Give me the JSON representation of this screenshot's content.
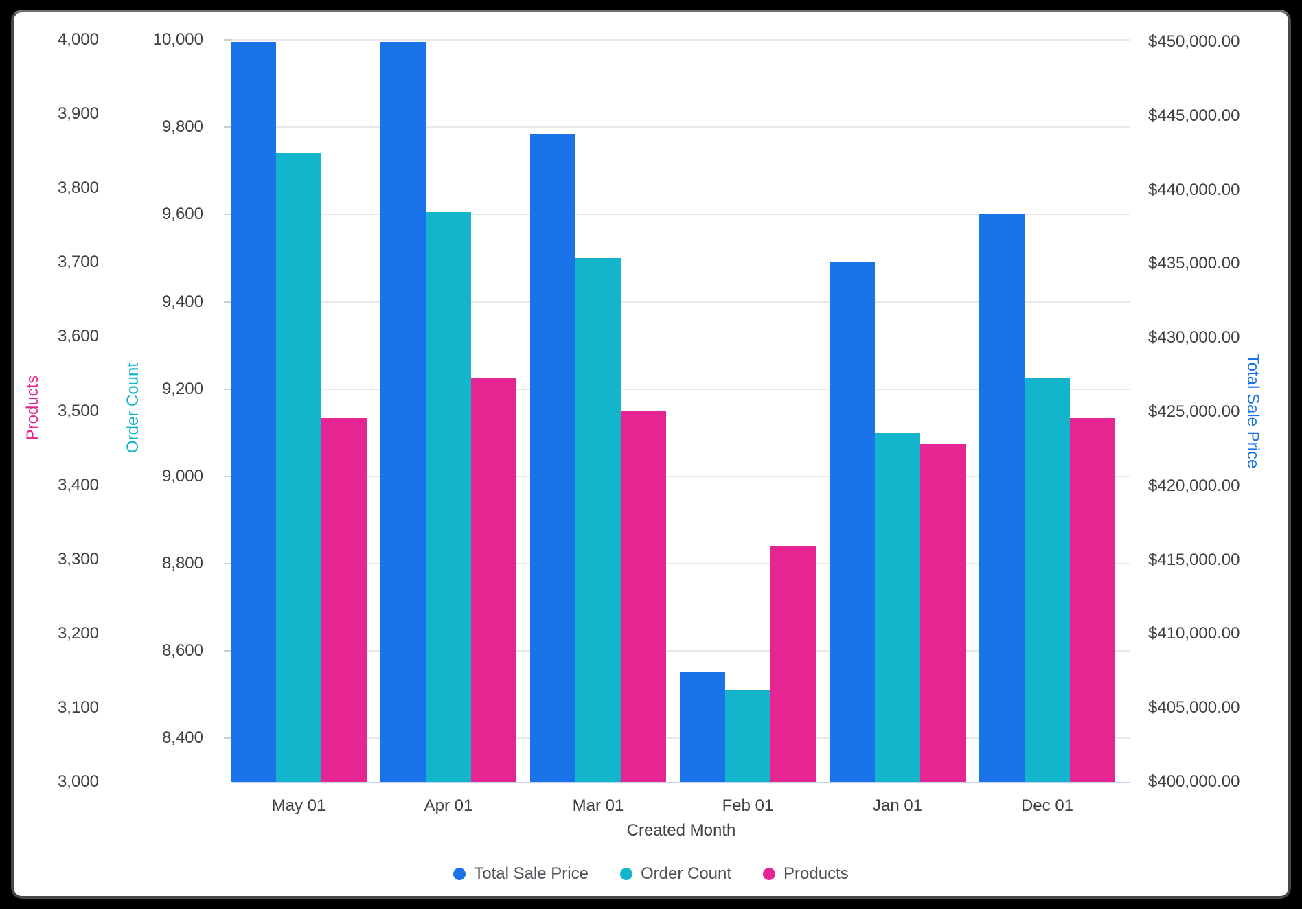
{
  "frame": {
    "background": "#000000",
    "card_background": "#ffffff",
    "card_border": "#46494c"
  },
  "colors": {
    "sale_blue": "#1A73E8",
    "order_cyan": "#12B5CB",
    "products_pink": "#E52592",
    "tick_text": "#3c4043",
    "legend_text": "#4d5156",
    "gridline": "#e8e8e8",
    "axis_baseline": "#c7d1ee"
  },
  "chart_data": {
    "type": "bar",
    "title": "",
    "categories": [
      "May 01",
      "Apr 01",
      "Mar 01",
      "Feb 01",
      "Jan 01",
      "Dec 01"
    ],
    "series": [
      {
        "name": "Total Sale Price",
        "axis": "sale",
        "color": "#1A73E8",
        "values": [
          450000,
          450000,
          443800,
          407400,
          435100,
          438400
        ]
      },
      {
        "name": "Order Count",
        "axis": "order",
        "color": "#12B5CB",
        "values": [
          9740,
          9605,
          9500,
          8510,
          9100,
          9225
        ]
      },
      {
        "name": "Products",
        "axis": "products",
        "color": "#E52592",
        "values": [
          3490,
          3545,
          3500,
          3317,
          3455,
          3490
        ]
      }
    ],
    "xlabel": "Created Month",
    "grid": "horizontal gridlines on Order Count ticks",
    "legend_position": "bottom-center",
    "axes": {
      "products": {
        "title": "Products",
        "title_color": "#E52592",
        "side": "left-outer",
        "min": 3000,
        "max": 4000,
        "ticks": [
          {
            "v": 4000,
            "label": "4,000"
          },
          {
            "v": 3900,
            "label": "3,900"
          },
          {
            "v": 3800,
            "label": "3,800"
          },
          {
            "v": 3700,
            "label": "3,700"
          },
          {
            "v": 3600,
            "label": "3,600"
          },
          {
            "v": 3500,
            "label": "3,500"
          },
          {
            "v": 3400,
            "label": "3,400"
          },
          {
            "v": 3300,
            "label": "3,300"
          },
          {
            "v": 3200,
            "label": "3,200"
          },
          {
            "v": 3100,
            "label": "3,100"
          },
          {
            "v": 3000,
            "label": "3,000"
          }
        ]
      },
      "order": {
        "title": "Order Count",
        "title_color": "#12B5CB",
        "side": "left-inner",
        "min": 8300,
        "max": 10000,
        "ticks": [
          {
            "v": 10000,
            "label": "10,000"
          },
          {
            "v": 9800,
            "label": "9,800"
          },
          {
            "v": 9600,
            "label": "9,600"
          },
          {
            "v": 9400,
            "label": "9,400"
          },
          {
            "v": 9200,
            "label": "9,200"
          },
          {
            "v": 9000,
            "label": "9,000"
          },
          {
            "v": 8800,
            "label": "8,800"
          },
          {
            "v": 8600,
            "label": "8,600"
          },
          {
            "v": 8400,
            "label": "8,400"
          }
        ]
      },
      "sale": {
        "title": "Total Sale Price",
        "title_color": "#1A73E8",
        "side": "right",
        "min": 400000,
        "max": 450000,
        "ticks": [
          {
            "v": 450000,
            "label": "$450,000.00"
          },
          {
            "v": 445000,
            "label": "$445,000.00"
          },
          {
            "v": 440000,
            "label": "$440,000.00"
          },
          {
            "v": 435000,
            "label": "$435,000.00"
          },
          {
            "v": 430000,
            "label": "$430,000.00"
          },
          {
            "v": 425000,
            "label": "$425,000.00"
          },
          {
            "v": 420000,
            "label": "$420,000.00"
          },
          {
            "v": 415000,
            "label": "$415,000.00"
          },
          {
            "v": 410000,
            "label": "$410,000.00"
          },
          {
            "v": 405000,
            "label": "$405,000.00"
          },
          {
            "v": 400000,
            "label": "$400,000.00"
          }
        ]
      }
    }
  },
  "legend": {
    "items": [
      {
        "label": "Total Sale Price",
        "color": "#1A73E8"
      },
      {
        "label": "Order Count",
        "color": "#12B5CB"
      },
      {
        "label": "Products",
        "color": "#E52592"
      }
    ]
  }
}
